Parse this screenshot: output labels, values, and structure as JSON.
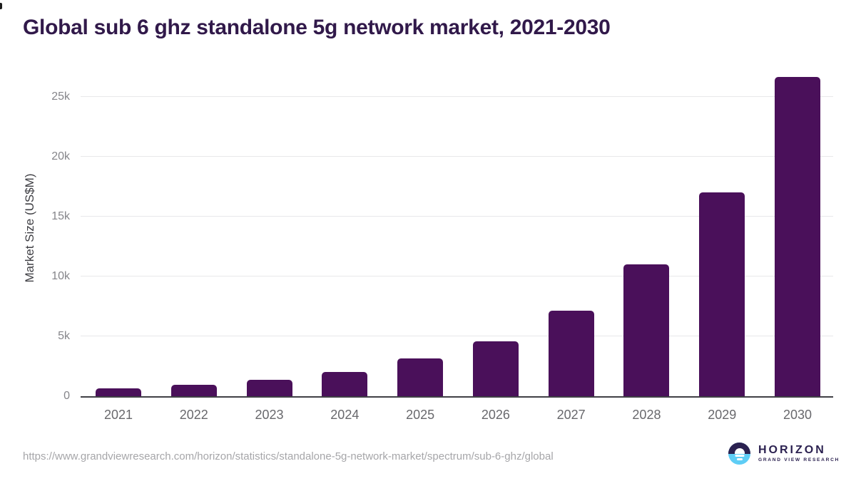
{
  "header": {
    "title": "Global sub 6 ghz standalone 5g network market, 2021-2030"
  },
  "chart_data": {
    "type": "bar",
    "title": "Global sub 6 ghz standalone 5g network market, 2021-2030",
    "categories": [
      "2021",
      "2022",
      "2023",
      "2024",
      "2025",
      "2026",
      "2027",
      "2028",
      "2029",
      "2030"
    ],
    "values": [
      650,
      950,
      1400,
      2050,
      3150,
      4600,
      7150,
      11000,
      17050,
      26700
    ],
    "xlabel": "",
    "ylabel": "Market Size (US$M)",
    "unit": "US$M",
    "ylim": [
      0,
      27000
    ],
    "yticks": [
      {
        "value": 0,
        "label": "0"
      },
      {
        "value": 5000,
        "label": "5k"
      },
      {
        "value": 10000,
        "label": "10k"
      },
      {
        "value": 15000,
        "label": "15k"
      },
      {
        "value": 20000,
        "label": "20k"
      },
      {
        "value": 25000,
        "label": "25k"
      }
    ],
    "grid": true,
    "legend": false,
    "bar_color": "#4a105a"
  },
  "footer": {
    "source_url": "https://www.grandviewresearch.com/horizon/statistics/standalone-5g-network-market/spectrum/sub-6-ghz/global",
    "logo": {
      "name": "HORIZON",
      "subtitle": "GRAND VIEW RESEARCH"
    }
  },
  "colors": {
    "title_text": "#31194a",
    "bar": "#4a105a",
    "gridline": "#e8e8ea",
    "axis_line": "#404045",
    "logo_dark": "#2b2150",
    "logo_blue": "#5ecdf5"
  }
}
